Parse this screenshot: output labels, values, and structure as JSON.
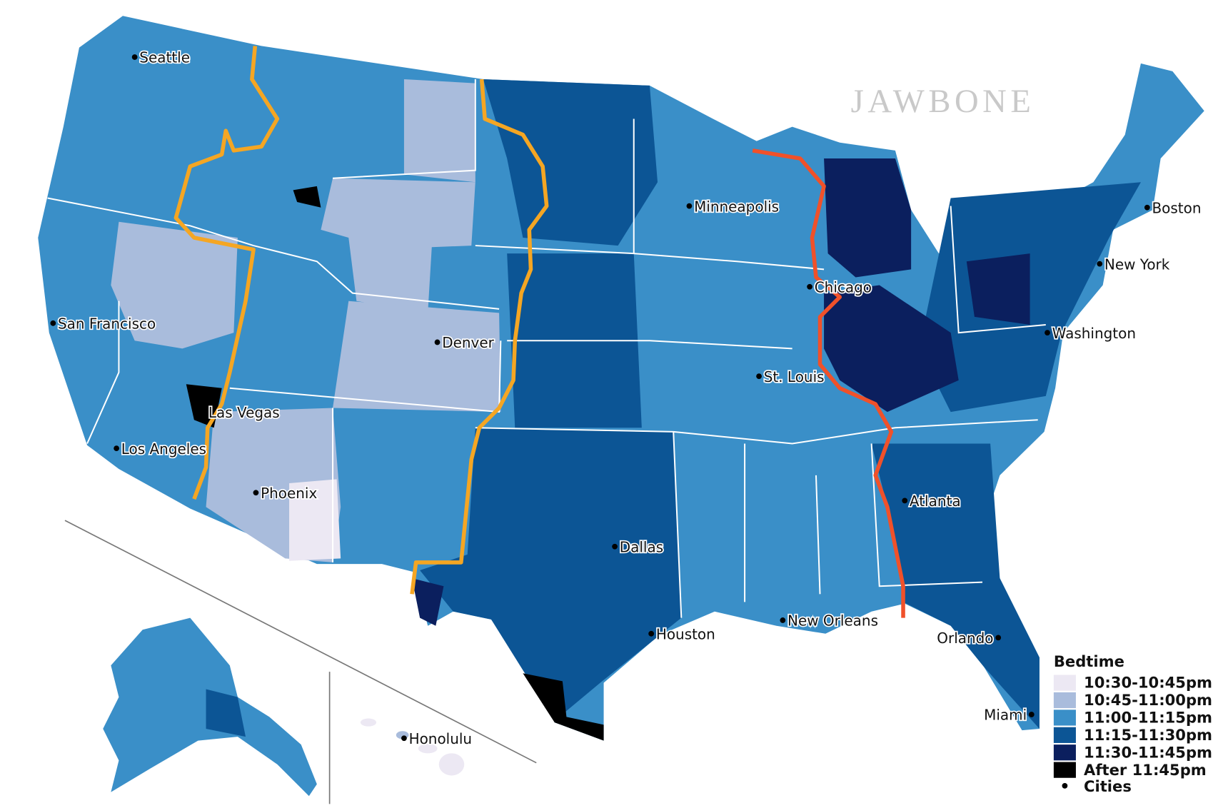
{
  "watermark": "JAWBONE",
  "legend": {
    "title": "Bedtime",
    "items": [
      {
        "label": "10:30-10:45pm",
        "color": "#ece8f3"
      },
      {
        "label": "10:45-11:00pm",
        "color": "#a9bcdc"
      },
      {
        "label": "11:00-11:15pm",
        "color": "#3a8fc8"
      },
      {
        "label": "11:15-11:30pm",
        "color": "#0c5595"
      },
      {
        "label": "11:30-11:45pm",
        "color": "#0b1f5e"
      },
      {
        "label": "After 11:45pm",
        "color": "#000000"
      }
    ],
    "cities_label": "Cities"
  },
  "cities": [
    {
      "name": "Seattle"
    },
    {
      "name": "San Francisco"
    },
    {
      "name": "Los Angeles"
    },
    {
      "name": "Las Vegas"
    },
    {
      "name": "Phoenix"
    },
    {
      "name": "Denver"
    },
    {
      "name": "Minneapolis"
    },
    {
      "name": "Chicago"
    },
    {
      "name": "St. Louis"
    },
    {
      "name": "Dallas"
    },
    {
      "name": "Houston"
    },
    {
      "name": "New Orleans"
    },
    {
      "name": "Atlanta"
    },
    {
      "name": "Orlando"
    },
    {
      "name": "Miami"
    },
    {
      "name": "Washington"
    },
    {
      "name": "New York"
    },
    {
      "name": "Boston"
    },
    {
      "name": "Honolulu"
    }
  ]
}
